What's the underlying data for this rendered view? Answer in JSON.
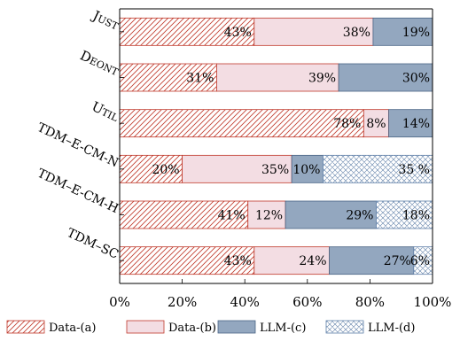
{
  "chart_data": {
    "type": "bar",
    "orientation": "horizontal",
    "stacked": true,
    "categories": [
      "Just",
      "Deont",
      "Util",
      "TDM–E-CM-N",
      "TDM–E-CM-H",
      "TDM–SC"
    ],
    "category_labels": [
      "Just",
      "Deont",
      "Util",
      "TDM–E-CM-N",
      "TDM–E-CM-H",
      "TDM–SC"
    ],
    "series": [
      {
        "name": "Data-(a)",
        "values": [
          43,
          31,
          78,
          20,
          41,
          43
        ],
        "labels": [
          "43%",
          "31%",
          "78%",
          "20%",
          "41%",
          "43%"
        ],
        "color": "#c0392b",
        "pattern": "diagonal-hatch"
      },
      {
        "name": "Data-(b)",
        "values": [
          38,
          39,
          8,
          35,
          12,
          24
        ],
        "labels": [
          "38%",
          "39%",
          "8%",
          "35%",
          "12%",
          "24%"
        ],
        "color": "#f3dde3",
        "pattern": "solid"
      },
      {
        "name": "LLM-(c)",
        "values": [
          19,
          30,
          14,
          10,
          29,
          27
        ],
        "labels": [
          "19%",
          "30%",
          "14%",
          "10%",
          "29%",
          "27%"
        ],
        "color": "#93a7bf",
        "pattern": "solid"
      },
      {
        "name": "LLM-(d)",
        "values": [
          0,
          0,
          0,
          35,
          18,
          6
        ],
        "labels": [
          "",
          "",
          "",
          "35 %",
          "18%",
          "6%"
        ],
        "color": "#7d98bd",
        "pattern": "crosshatch"
      }
    ],
    "xlim": [
      0,
      100
    ],
    "xticks": [
      0,
      20,
      40,
      60,
      80,
      100
    ],
    "xtick_labels": [
      "0%",
      "20%",
      "40%",
      "60%",
      "80%",
      "100%"
    ],
    "title": "",
    "xlabel": "",
    "ylabel": "",
    "grid": false,
    "legend_position": "bottom"
  }
}
